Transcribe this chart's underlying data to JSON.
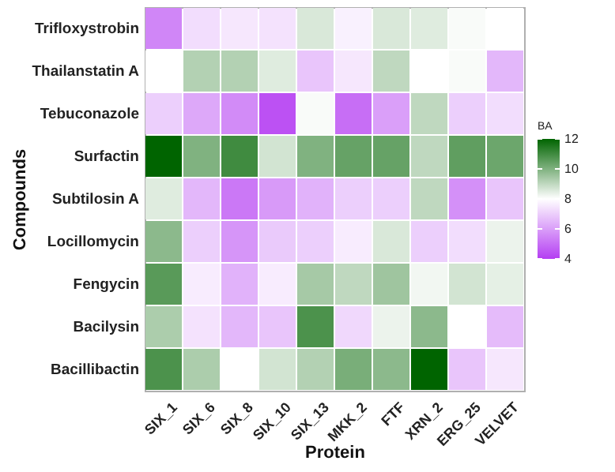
{
  "chart_data": {
    "type": "heatmap",
    "xlabel": "Protein",
    "ylabel": "Compounds",
    "clabel": "BA",
    "categories": [
      "SIX_1",
      "SIX_6",
      "SIX_8",
      "SIX_10",
      "SIX_13",
      "MKK_2",
      "FTF",
      "XRN_2",
      "ERG_25",
      "VELVET"
    ],
    "y_categories": [
      "Trifloxystrobin",
      "Thailanstatin A",
      "Tebuconazole",
      "Surfactin",
      "Subtilosin A",
      "Locillomycin",
      "Fengycin",
      "Bacilysin",
      "Bacillibactin"
    ],
    "cells": [
      [
        5.5,
        7.3,
        7.5,
        7.4,
        8.6,
        7.7,
        8.6,
        8.5,
        8.1,
        8.0
      ],
      [
        8.0,
        9.2,
        9.2,
        8.5,
        6.8,
        7.5,
        9.0,
        8.0,
        8.1,
        6.5
      ],
      [
        7.0,
        6.2,
        5.6,
        4.4,
        8.1,
        5.0,
        6.0,
        9.0,
        7.0,
        7.3
      ],
      [
        12.0,
        10.0,
        11.0,
        8.7,
        10.0,
        10.4,
        10.4,
        9.0,
        10.5,
        10.3
      ],
      [
        8.5,
        6.5,
        5.2,
        5.9,
        6.4,
        7.0,
        7.0,
        9.0,
        5.7,
        6.8
      ],
      [
        9.8,
        7.0,
        5.8,
        6.9,
        7.0,
        7.6,
        8.6,
        7.0,
        7.3,
        8.3
      ],
      [
        10.6,
        7.6,
        6.4,
        7.6,
        9.4,
        9.0,
        9.5,
        8.2,
        8.7,
        8.4
      ],
      [
        9.3,
        7.4,
        6.5,
        6.8,
        10.8,
        7.2,
        8.3,
        9.8,
        8.0,
        6.6
      ],
      [
        10.8,
        9.3,
        8.0,
        8.7,
        9.2,
        10.1,
        9.8,
        12.0,
        6.8,
        7.5
      ]
    ],
    "clim": [
      4,
      12
    ],
    "cticks": [
      4,
      6,
      8,
      10,
      12
    ]
  }
}
